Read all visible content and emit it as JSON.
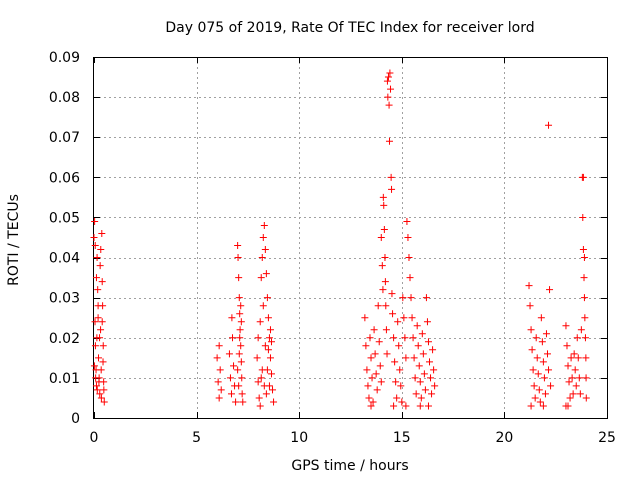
{
  "chart_data": {
    "type": "scatter",
    "title": "Day 075 of 2019, Rate Of TEC Index for receiver lord",
    "xlabel": "GPS time / hours",
    "ylabel": "ROTI / TECUs",
    "xlim": [
      0,
      25
    ],
    "ylim": [
      0,
      0.09
    ],
    "xticks": [
      0,
      5,
      10,
      15,
      20,
      25
    ],
    "xtick_labels": [
      "0",
      "5",
      "10",
      "15",
      "20",
      "25"
    ],
    "yticks": [
      0,
      0.01,
      0.02,
      0.03,
      0.04,
      0.05,
      0.06,
      0.07,
      0.08,
      0.09
    ],
    "ytick_labels": [
      "0",
      "0.01",
      "0.02",
      "0.03",
      "0.04",
      "0.05",
      "0.06",
      "0.07",
      "0.08",
      "0.09"
    ],
    "grid": true,
    "marker": "+",
    "color": "#ff0000",
    "series": [
      {
        "name": "ROTI",
        "points": [
          [
            0.0,
            0.045
          ],
          [
            0.03,
            0.049
          ],
          [
            0.05,
            0.024
          ],
          [
            0.07,
            0.018
          ],
          [
            0.1,
            0.012
          ],
          [
            0.12,
            0.008
          ],
          [
            0.15,
            0.04
          ],
          [
            0.18,
            0.032
          ],
          [
            0.2,
            0.025
          ],
          [
            0.22,
            0.015
          ],
          [
            0.25,
            0.01
          ],
          [
            0.28,
            0.006
          ],
          [
            0.3,
            0.038
          ],
          [
            0.32,
            0.022
          ],
          [
            0.35,
            0.012
          ],
          [
            0.38,
            0.046
          ],
          [
            0.4,
            0.034
          ],
          [
            0.42,
            0.028
          ],
          [
            0.45,
            0.018
          ],
          [
            0.47,
            0.009
          ],
          [
            0.5,
            0.004
          ],
          [
            0.06,
            0.043
          ],
          [
            0.12,
            0.035
          ],
          [
            0.2,
            0.028
          ],
          [
            0.33,
            0.042
          ],
          [
            0.44,
            0.014
          ],
          [
            0.08,
            0.01
          ],
          [
            0.16,
            0.007
          ],
          [
            0.27,
            0.02
          ],
          [
            0.36,
            0.005
          ],
          [
            0.02,
            0.013
          ],
          [
            0.14,
            0.02
          ],
          [
            0.24,
            0.009
          ],
          [
            0.4,
            0.024
          ],
          [
            0.48,
            0.007
          ],
          [
            6.0,
            0.015
          ],
          [
            6.05,
            0.009
          ],
          [
            6.1,
            0.005
          ],
          [
            6.15,
            0.012
          ],
          [
            6.2,
            0.007
          ],
          [
            6.1,
            0.018
          ],
          [
            6.6,
            0.016
          ],
          [
            6.65,
            0.01
          ],
          [
            6.7,
            0.006
          ],
          [
            6.75,
            0.02
          ],
          [
            6.8,
            0.013
          ],
          [
            6.85,
            0.008
          ],
          [
            6.9,
            0.004
          ],
          [
            6.72,
            0.025
          ],
          [
            7.0,
            0.043
          ],
          [
            7.02,
            0.04
          ],
          [
            7.05,
            0.035
          ],
          [
            7.08,
            0.03
          ],
          [
            7.1,
            0.026
          ],
          [
            7.12,
            0.022
          ],
          [
            7.15,
            0.018
          ],
          [
            7.18,
            0.014
          ],
          [
            7.2,
            0.01
          ],
          [
            7.22,
            0.006
          ],
          [
            7.05,
            0.008
          ],
          [
            7.15,
            0.028
          ],
          [
            7.0,
            0.012
          ],
          [
            7.08,
            0.016
          ],
          [
            7.25,
            0.004
          ],
          [
            7.1,
            0.02
          ],
          [
            7.18,
            0.024
          ],
          [
            7.95,
            0.015
          ],
          [
            8.0,
            0.009
          ],
          [
            8.05,
            0.005
          ],
          [
            8.1,
            0.024
          ],
          [
            8.15,
            0.035
          ],
          [
            8.2,
            0.04
          ],
          [
            8.25,
            0.045
          ],
          [
            8.3,
            0.048
          ],
          [
            8.35,
            0.042
          ],
          [
            8.4,
            0.036
          ],
          [
            8.45,
            0.03
          ],
          [
            8.5,
            0.025
          ],
          [
            8.55,
            0.02
          ],
          [
            8.6,
            0.015
          ],
          [
            8.65,
            0.011
          ],
          [
            8.7,
            0.007
          ],
          [
            8.75,
            0.004
          ],
          [
            8.2,
            0.012
          ],
          [
            8.3,
            0.008
          ],
          [
            8.4,
            0.006
          ],
          [
            8.5,
            0.017
          ],
          [
            8.6,
            0.022
          ],
          [
            8.0,
            0.02
          ],
          [
            8.15,
            0.01
          ],
          [
            8.25,
            0.028
          ],
          [
            8.35,
            0.018
          ],
          [
            8.45,
            0.012
          ],
          [
            8.55,
            0.008
          ],
          [
            8.65,
            0.019
          ],
          [
            8.1,
            0.003
          ],
          [
            13.2,
            0.025
          ],
          [
            13.25,
            0.018
          ],
          [
            13.3,
            0.012
          ],
          [
            13.35,
            0.008
          ],
          [
            13.4,
            0.005
          ],
          [
            13.45,
            0.02
          ],
          [
            13.5,
            0.015
          ],
          [
            13.55,
            0.01
          ],
          [
            13.6,
            0.004
          ],
          [
            13.65,
            0.022
          ],
          [
            13.7,
            0.016
          ],
          [
            13.75,
            0.011
          ],
          [
            13.8,
            0.007
          ],
          [
            13.85,
            0.028
          ],
          [
            13.9,
            0.019
          ],
          [
            13.95,
            0.013
          ],
          [
            14.0,
            0.009
          ],
          [
            14.0,
            0.045
          ],
          [
            14.05,
            0.038
          ],
          [
            14.08,
            0.032
          ],
          [
            14.1,
            0.055
          ],
          [
            14.12,
            0.053
          ],
          [
            14.15,
            0.047
          ],
          [
            14.18,
            0.04
          ],
          [
            14.2,
            0.034
          ],
          [
            14.22,
            0.028
          ],
          [
            14.25,
            0.022
          ],
          [
            14.28,
            0.016
          ],
          [
            14.3,
            0.084
          ],
          [
            14.32,
            0.08
          ],
          [
            14.35,
            0.085
          ],
          [
            14.38,
            0.078
          ],
          [
            14.4,
            0.069
          ],
          [
            14.42,
            0.086
          ],
          [
            14.45,
            0.082
          ],
          [
            14.48,
            0.06
          ],
          [
            14.5,
            0.057
          ],
          [
            14.52,
            0.031
          ],
          [
            14.55,
            0.026
          ],
          [
            14.6,
            0.02
          ],
          [
            14.65,
            0.014
          ],
          [
            14.7,
            0.009
          ],
          [
            14.75,
            0.005
          ],
          [
            14.8,
            0.024
          ],
          [
            14.85,
            0.018
          ],
          [
            14.9,
            0.012
          ],
          [
            14.95,
            0.008
          ],
          [
            15.0,
            0.004
          ],
          [
            15.05,
            0.03
          ],
          [
            15.1,
            0.025
          ],
          [
            15.15,
            0.02
          ],
          [
            15.2,
            0.015
          ],
          [
            15.25,
            0.049
          ],
          [
            15.3,
            0.045
          ],
          [
            15.35,
            0.04
          ],
          [
            15.4,
            0.035
          ],
          [
            15.45,
            0.03
          ],
          [
            15.5,
            0.025
          ],
          [
            15.55,
            0.02
          ],
          [
            15.6,
            0.015
          ],
          [
            15.65,
            0.01
          ],
          [
            15.7,
            0.006
          ],
          [
            15.75,
            0.023
          ],
          [
            15.8,
            0.018
          ],
          [
            15.85,
            0.013
          ],
          [
            15.9,
            0.009
          ],
          [
            15.95,
            0.005
          ],
          [
            16.0,
            0.021
          ],
          [
            16.05,
            0.016
          ],
          [
            16.1,
            0.011
          ],
          [
            16.15,
            0.007
          ],
          [
            16.2,
            0.03
          ],
          [
            16.25,
            0.024
          ],
          [
            16.3,
            0.019
          ],
          [
            16.35,
            0.014
          ],
          [
            16.4,
            0.01
          ],
          [
            16.45,
            0.006
          ],
          [
            16.5,
            0.017
          ],
          [
            16.55,
            0.012
          ],
          [
            16.6,
            0.008
          ],
          [
            14.6,
            0.003
          ],
          [
            15.2,
            0.003
          ],
          [
            15.9,
            0.003
          ],
          [
            13.5,
            0.003
          ],
          [
            16.3,
            0.003
          ],
          [
            21.2,
            0.033
          ],
          [
            21.25,
            0.028
          ],
          [
            21.3,
            0.022
          ],
          [
            21.35,
            0.017
          ],
          [
            21.4,
            0.012
          ],
          [
            21.45,
            0.008
          ],
          [
            21.5,
            0.005
          ],
          [
            21.55,
            0.02
          ],
          [
            21.6,
            0.015
          ],
          [
            21.65,
            0.011
          ],
          [
            21.7,
            0.007
          ],
          [
            21.75,
            0.004
          ],
          [
            21.8,
            0.025
          ],
          [
            21.85,
            0.019
          ],
          [
            21.9,
            0.014
          ],
          [
            21.95,
            0.01
          ],
          [
            22.0,
            0.006
          ],
          [
            22.05,
            0.021
          ],
          [
            22.1,
            0.016
          ],
          [
            22.15,
            0.012
          ],
          [
            22.2,
            0.032
          ],
          [
            22.15,
            0.073
          ],
          [
            22.25,
            0.008
          ],
          [
            21.3,
            0.003
          ],
          [
            21.9,
            0.003
          ],
          [
            23.0,
            0.023
          ],
          [
            23.05,
            0.018
          ],
          [
            23.1,
            0.013
          ],
          [
            23.15,
            0.009
          ],
          [
            23.2,
            0.005
          ],
          [
            23.25,
            0.015
          ],
          [
            23.3,
            0.01
          ],
          [
            23.35,
            0.006
          ],
          [
            23.1,
            0.003
          ],
          [
            23.0,
            0.003
          ],
          [
            23.4,
            0.016
          ],
          [
            23.45,
            0.012
          ],
          [
            23.5,
            0.008
          ],
          [
            23.55,
            0.02
          ],
          [
            23.6,
            0.015
          ],
          [
            23.65,
            0.01
          ],
          [
            23.7,
            0.006
          ],
          [
            23.75,
            0.022
          ],
          [
            23.8,
            0.06
          ],
          [
            23.82,
            0.05
          ],
          [
            23.85,
            0.042
          ],
          [
            23.88,
            0.035
          ],
          [
            23.9,
            0.03
          ],
          [
            23.92,
            0.025
          ],
          [
            23.95,
            0.02
          ],
          [
            23.97,
            0.015
          ],
          [
            23.98,
            0.01
          ],
          [
            23.99,
            0.005
          ],
          [
            23.85,
            0.06
          ],
          [
            23.9,
            0.04
          ]
        ]
      }
    ]
  }
}
